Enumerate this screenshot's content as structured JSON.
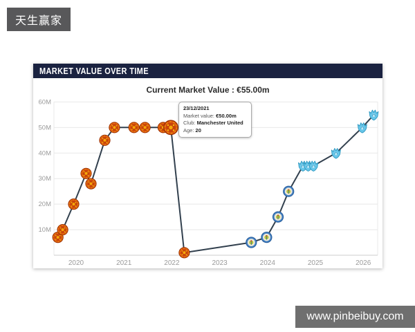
{
  "watermarks": {
    "top_left": "天生赢家",
    "bottom_right": "www.pinbeibuy.com"
  },
  "card": {
    "header": "MARKET VALUE OVER TIME",
    "subtitle": "Current Market Value : €55.00m"
  },
  "tooltip": {
    "date": "23/12/2021",
    "market_value_label": "Market value:",
    "market_value": "€50.00m",
    "club_label": "Club:",
    "club": "Manchester United",
    "age_label": "Age:",
    "age": "20"
  },
  "chart_data": {
    "type": "line",
    "title": "MARKET VALUE OVER TIME",
    "subtitle": "Current Market Value : €55.00m",
    "xlabel": "",
    "ylabel": "",
    "x_tick_labels": [
      "2020",
      "2021",
      "2022",
      "2023",
      "2024",
      "2025",
      "2026"
    ],
    "x_ticks": [
      2020,
      2021,
      2022,
      2023,
      2024,
      2025,
      2026
    ],
    "y_tick_labels": [
      "10M",
      "20M",
      "30M",
      "40M",
      "50M",
      "60M"
    ],
    "y_ticks_m": [
      10,
      20,
      30,
      40,
      50,
      60
    ],
    "xlim": [
      2019.5,
      2026.4
    ],
    "ylim_m": [
      0,
      62
    ],
    "grid": true,
    "legend": "none",
    "line_color": "#32404e",
    "points": [
      {
        "x": 2019.62,
        "value_m": 7,
        "marker": "red-club-badge"
      },
      {
        "x": 2019.72,
        "value_m": 10,
        "marker": "red-club-badge"
      },
      {
        "x": 2019.95,
        "value_m": 20,
        "marker": "red-club-badge"
      },
      {
        "x": 2020.21,
        "value_m": 32,
        "marker": "red-club-badge"
      },
      {
        "x": 2020.31,
        "value_m": 28,
        "marker": "red-club-badge"
      },
      {
        "x": 2020.6,
        "value_m": 45,
        "marker": "red-club-badge"
      },
      {
        "x": 2020.8,
        "value_m": 50,
        "marker": "red-club-badge"
      },
      {
        "x": 2021.21,
        "value_m": 50,
        "marker": "red-club-badge"
      },
      {
        "x": 2021.44,
        "value_m": 50,
        "marker": "red-club-badge"
      },
      {
        "x": 2021.82,
        "value_m": 50,
        "marker": "red-club-badge"
      },
      {
        "x": 2021.98,
        "value_m": 50,
        "marker": "red-club-badge",
        "highlighted": true,
        "tooltip_date": "23/12/2021"
      },
      {
        "x": 2022.26,
        "value_m": 1,
        "marker": "red-club-badge"
      },
      {
        "x": 2023.66,
        "value_m": 5,
        "marker": "blue-club-badge"
      },
      {
        "x": 2023.98,
        "value_m": 7,
        "marker": "blue-club-badge"
      },
      {
        "x": 2024.22,
        "value_m": 15,
        "marker": "blue-club-badge"
      },
      {
        "x": 2024.44,
        "value_m": 25,
        "marker": "blue-club-badge"
      },
      {
        "x": 2024.74,
        "value_m": 35,
        "marker": "lightblue-crest-badge"
      },
      {
        "x": 2024.85,
        "value_m": 35,
        "marker": "lightblue-crest-badge"
      },
      {
        "x": 2024.96,
        "value_m": 35,
        "marker": "lightblue-crest-badge"
      },
      {
        "x": 2025.43,
        "value_m": 40,
        "marker": "lightblue-crest-badge"
      },
      {
        "x": 2025.98,
        "value_m": 50,
        "marker": "lightblue-crest-badge"
      },
      {
        "x": 2026.22,
        "value_m": 55,
        "marker": "lightblue-crest-badge"
      }
    ]
  },
  "colors": {
    "header_bg": "#1a2240",
    "line": "#32404e",
    "grid": "#e8e8e8",
    "axis": "#cccccc",
    "tick_text": "#9a9a9a",
    "red_badge": "#dd5712",
    "red_badge_dark": "#9c3000",
    "red_badge_accent": "#f5a90a",
    "blue_badge": "#4380c4",
    "blue_badge_center": "#eee8d5",
    "blue_badge_accent": "#b4c43a",
    "lightblue_crest": "#68c6e9",
    "lightblue_crest_stroke": "#2b97c0",
    "watermark_tl_bg": "#58585a",
    "watermark_br_bg": "#6f6f6f"
  }
}
